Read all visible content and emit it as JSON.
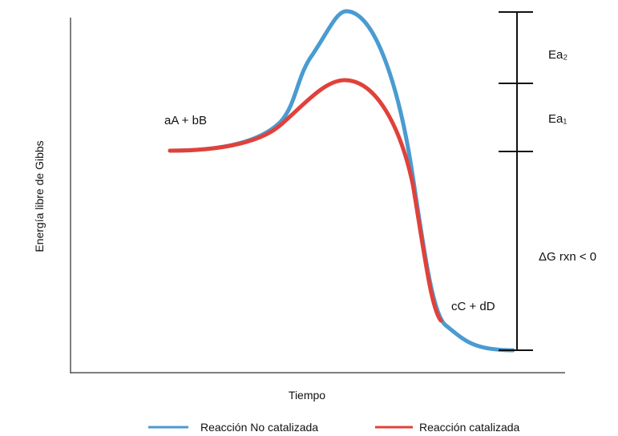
{
  "axes": {
    "y_label": "Energía libre de Gibbs",
    "x_label": "Tiempo"
  },
  "labels": {
    "reactants": "aA + bB",
    "products": "cC + dD",
    "ea2": "Ea₂",
    "ea1": "Ea₁",
    "delta_g": "ΔG rxn < 0"
  },
  "legend": [
    {
      "label": "Reacción No catalizada"
    },
    {
      "label": "Reacción catalizada"
    }
  ]
}
